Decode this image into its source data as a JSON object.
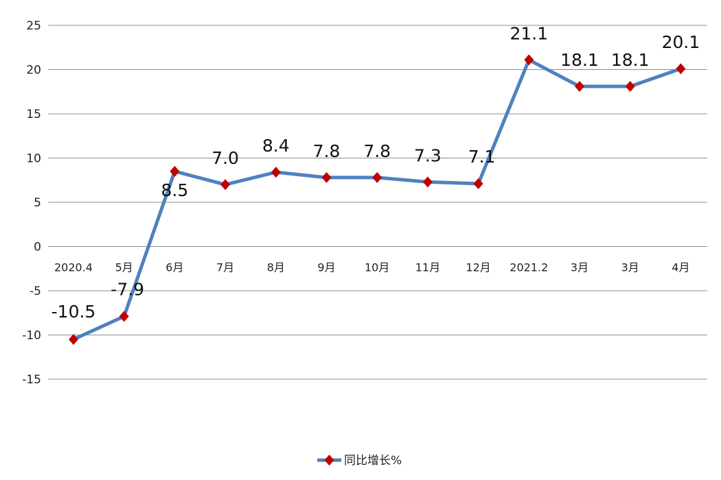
{
  "chart_data": {
    "type": "line",
    "categories": [
      "2020.4",
      "5月",
      "6月",
      "7月",
      "8月",
      "9月",
      "10月",
      "11月",
      "12月",
      "2021.2",
      "3月",
      "3月",
      "4月"
    ],
    "series": [
      {
        "name": "同比增长%",
        "values": [
          -10.5,
          -7.9,
          8.5,
          7.0,
          8.4,
          7.8,
          7.8,
          7.3,
          7.1,
          21.1,
          18.1,
          18.1,
          20.1
        ],
        "data_labels": [
          "-10.5",
          "-7.9",
          "8.5",
          "7.0",
          "8.4",
          "7.8",
          "7.8",
          "7.3",
          "7.1",
          "21.1",
          "18.1",
          "18.1",
          "20.1"
        ],
        "line_color": "#4f81bd",
        "marker_color": "#c00000",
        "marker": "diamond"
      }
    ],
    "y_ticks": [
      -15,
      -10,
      -5,
      0,
      5,
      10,
      15,
      20,
      25
    ],
    "ylim": [
      -15,
      25
    ],
    "grid": true,
    "legend": "bottom-center",
    "title": "",
    "xlabel": "",
    "ylabel": ""
  }
}
